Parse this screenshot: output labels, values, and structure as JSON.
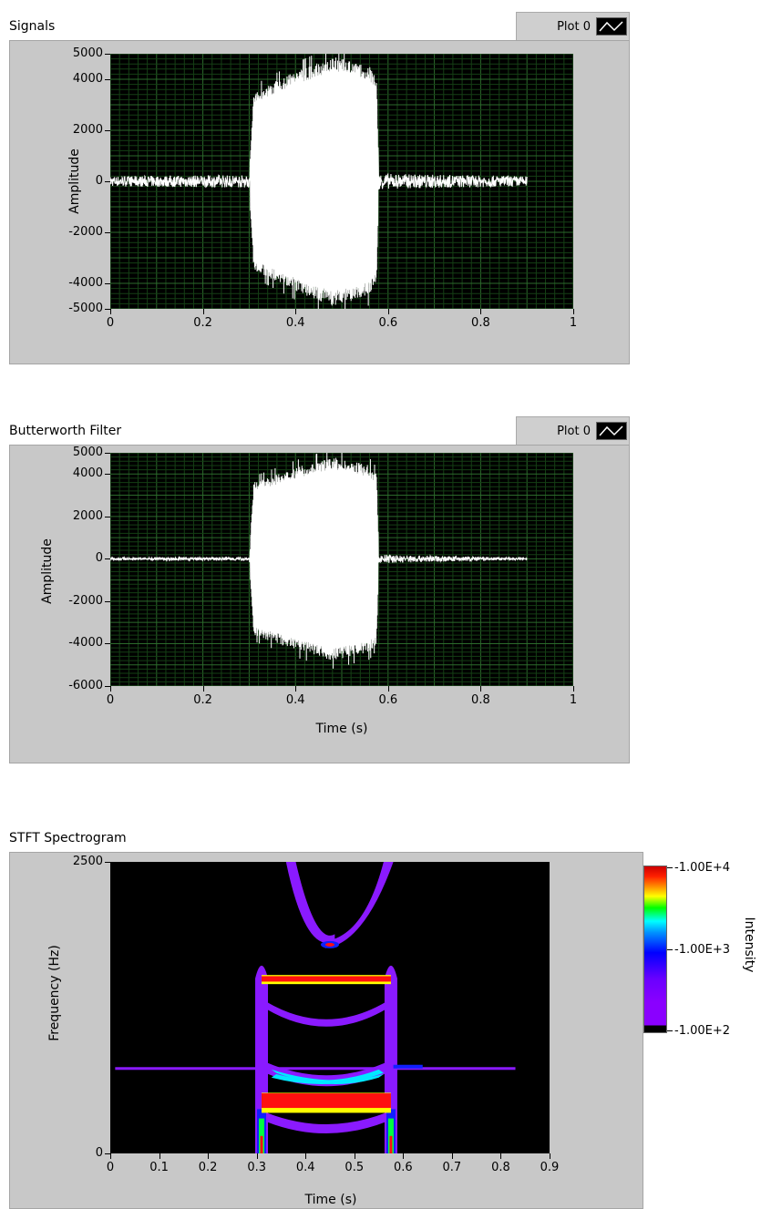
{
  "signals": {
    "title": "Signals",
    "legend": {
      "label": "Plot 0",
      "icon": "line-plot-icon"
    },
    "chart_data": {
      "type": "line",
      "title": "Signals",
      "xlabel": "",
      "ylabel": "Amplitude",
      "xlim": [
        0,
        1
      ],
      "ylim": [
        -5000,
        5000
      ],
      "xticks": [
        "0",
        "0.2",
        "0.4",
        "0.6",
        "0.8",
        "1"
      ],
      "yticks": [
        "5000",
        "4000",
        "2000",
        "0",
        "-2000",
        "-4000",
        "-5000"
      ],
      "grid": true,
      "series": [
        {
          "name": "Plot 0",
          "envelope": [
            {
              "x": 0.0,
              "y": 200
            },
            {
              "x": 0.3,
              "y": 250
            },
            {
              "x": 0.31,
              "y": 3500
            },
            {
              "x": 0.4,
              "y": 4300
            },
            {
              "x": 0.48,
              "y": 4900
            },
            {
              "x": 0.56,
              "y": 4500
            },
            {
              "x": 0.575,
              "y": 4000
            },
            {
              "x": 0.58,
              "y": 300
            },
            {
              "x": 0.9,
              "y": 200
            }
          ]
        }
      ]
    }
  },
  "butterworth": {
    "title": "Butterworth Filter",
    "legend": {
      "label": "Plot 0",
      "icon": "line-plot-icon"
    },
    "chart_data": {
      "type": "line",
      "title": "Butterworth Filter",
      "xlabel": "Time (s)",
      "ylabel": "Amplitude",
      "xlim": [
        0,
        1
      ],
      "ylim": [
        -6000,
        5000
      ],
      "xticks": [
        "0",
        "0.2",
        "0.4",
        "0.6",
        "0.8",
        "1"
      ],
      "yticks": [
        "5000",
        "4000",
        "2000",
        "0",
        "-2000",
        "-4000",
        "-6000"
      ],
      "grid": true,
      "series": [
        {
          "name": "Plot 0",
          "envelope": [
            {
              "x": 0.0,
              "y": 60
            },
            {
              "x": 0.3,
              "y": 80
            },
            {
              "x": 0.31,
              "y": 3600
            },
            {
              "x": 0.4,
              "y": 4300
            },
            {
              "x": 0.48,
              "y": 4800
            },
            {
              "x": 0.56,
              "y": 4400
            },
            {
              "x": 0.575,
              "y": 4000
            },
            {
              "x": 0.58,
              "y": 200
            },
            {
              "x": 0.9,
              "y": 40
            }
          ]
        }
      ]
    }
  },
  "spectrogram": {
    "title": "STFT Spectrogram",
    "chart_data": {
      "type": "heatmap",
      "title": "STFT Spectrogram",
      "xlabel": "Time (s)",
      "ylabel": "Frequency (Hz)",
      "xlim": [
        0,
        0.9
      ],
      "ylim": [
        0,
        2500
      ],
      "xticks": [
        "0",
        "0.1",
        "0.2",
        "0.3",
        "0.4",
        "0.5",
        "0.6",
        "0.7",
        "0.8",
        "0.9"
      ],
      "yticks": [
        "2500",
        "0"
      ],
      "colorbar_label": "Intensity",
      "colorbar_ticks": [
        "-1.00E+4",
        "-1.00E+3",
        "-1.00E+2"
      ]
    }
  }
}
